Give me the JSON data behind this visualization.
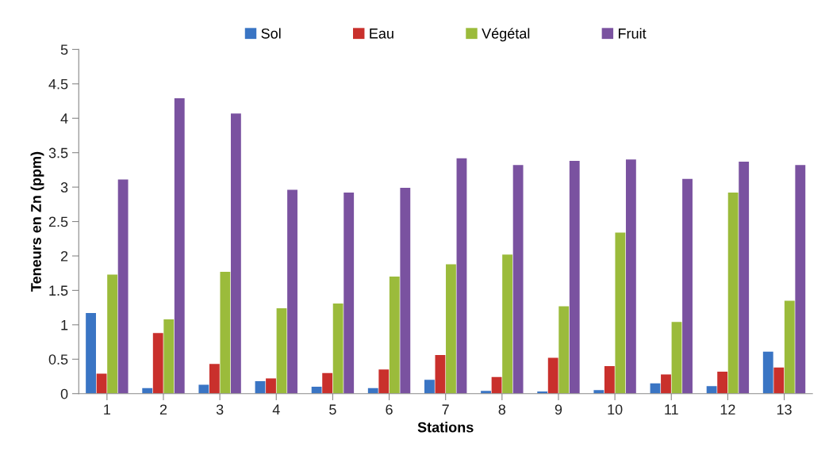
{
  "chart_data": {
    "type": "bar",
    "xlabel": "Stations",
    "ylabel": "Teneurs en Zn (ppm)",
    "categories": [
      "1",
      "2",
      "3",
      "4",
      "5",
      "6",
      "7",
      "8",
      "9",
      "10",
      "11",
      "12",
      "13"
    ],
    "series": [
      {
        "name": "Sol",
        "color": "#3a75c4",
        "values": [
          1.17,
          0.08,
          0.13,
          0.18,
          0.1,
          0.08,
          0.2,
          0.04,
          0.03,
          0.05,
          0.15,
          0.11,
          0.61
        ]
      },
      {
        "name": "Eau",
        "color": "#c9302c",
        "values": [
          0.29,
          0.88,
          0.43,
          0.22,
          0.3,
          0.35,
          0.56,
          0.24,
          0.52,
          0.4,
          0.28,
          0.32,
          0.38
        ]
      },
      {
        "name": "Végétal",
        "color": "#9bbb3b",
        "values": [
          1.73,
          1.08,
          1.77,
          1.24,
          1.31,
          1.7,
          1.88,
          2.02,
          1.27,
          2.34,
          1.04,
          2.92,
          1.35
        ]
      },
      {
        "name": "Fruit",
        "color": "#7a52a0",
        "values": [
          3.11,
          4.29,
          4.07,
          2.96,
          2.92,
          2.99,
          3.42,
          3.32,
          3.38,
          3.4,
          3.12,
          3.37,
          3.32
        ]
      }
    ],
    "ylim": [
      0,
      5
    ],
    "yticks": [
      0,
      0.5,
      1,
      1.5,
      2,
      2.5,
      3,
      3.5,
      4,
      4.5,
      5
    ],
    "grid": false,
    "legend": "top"
  }
}
